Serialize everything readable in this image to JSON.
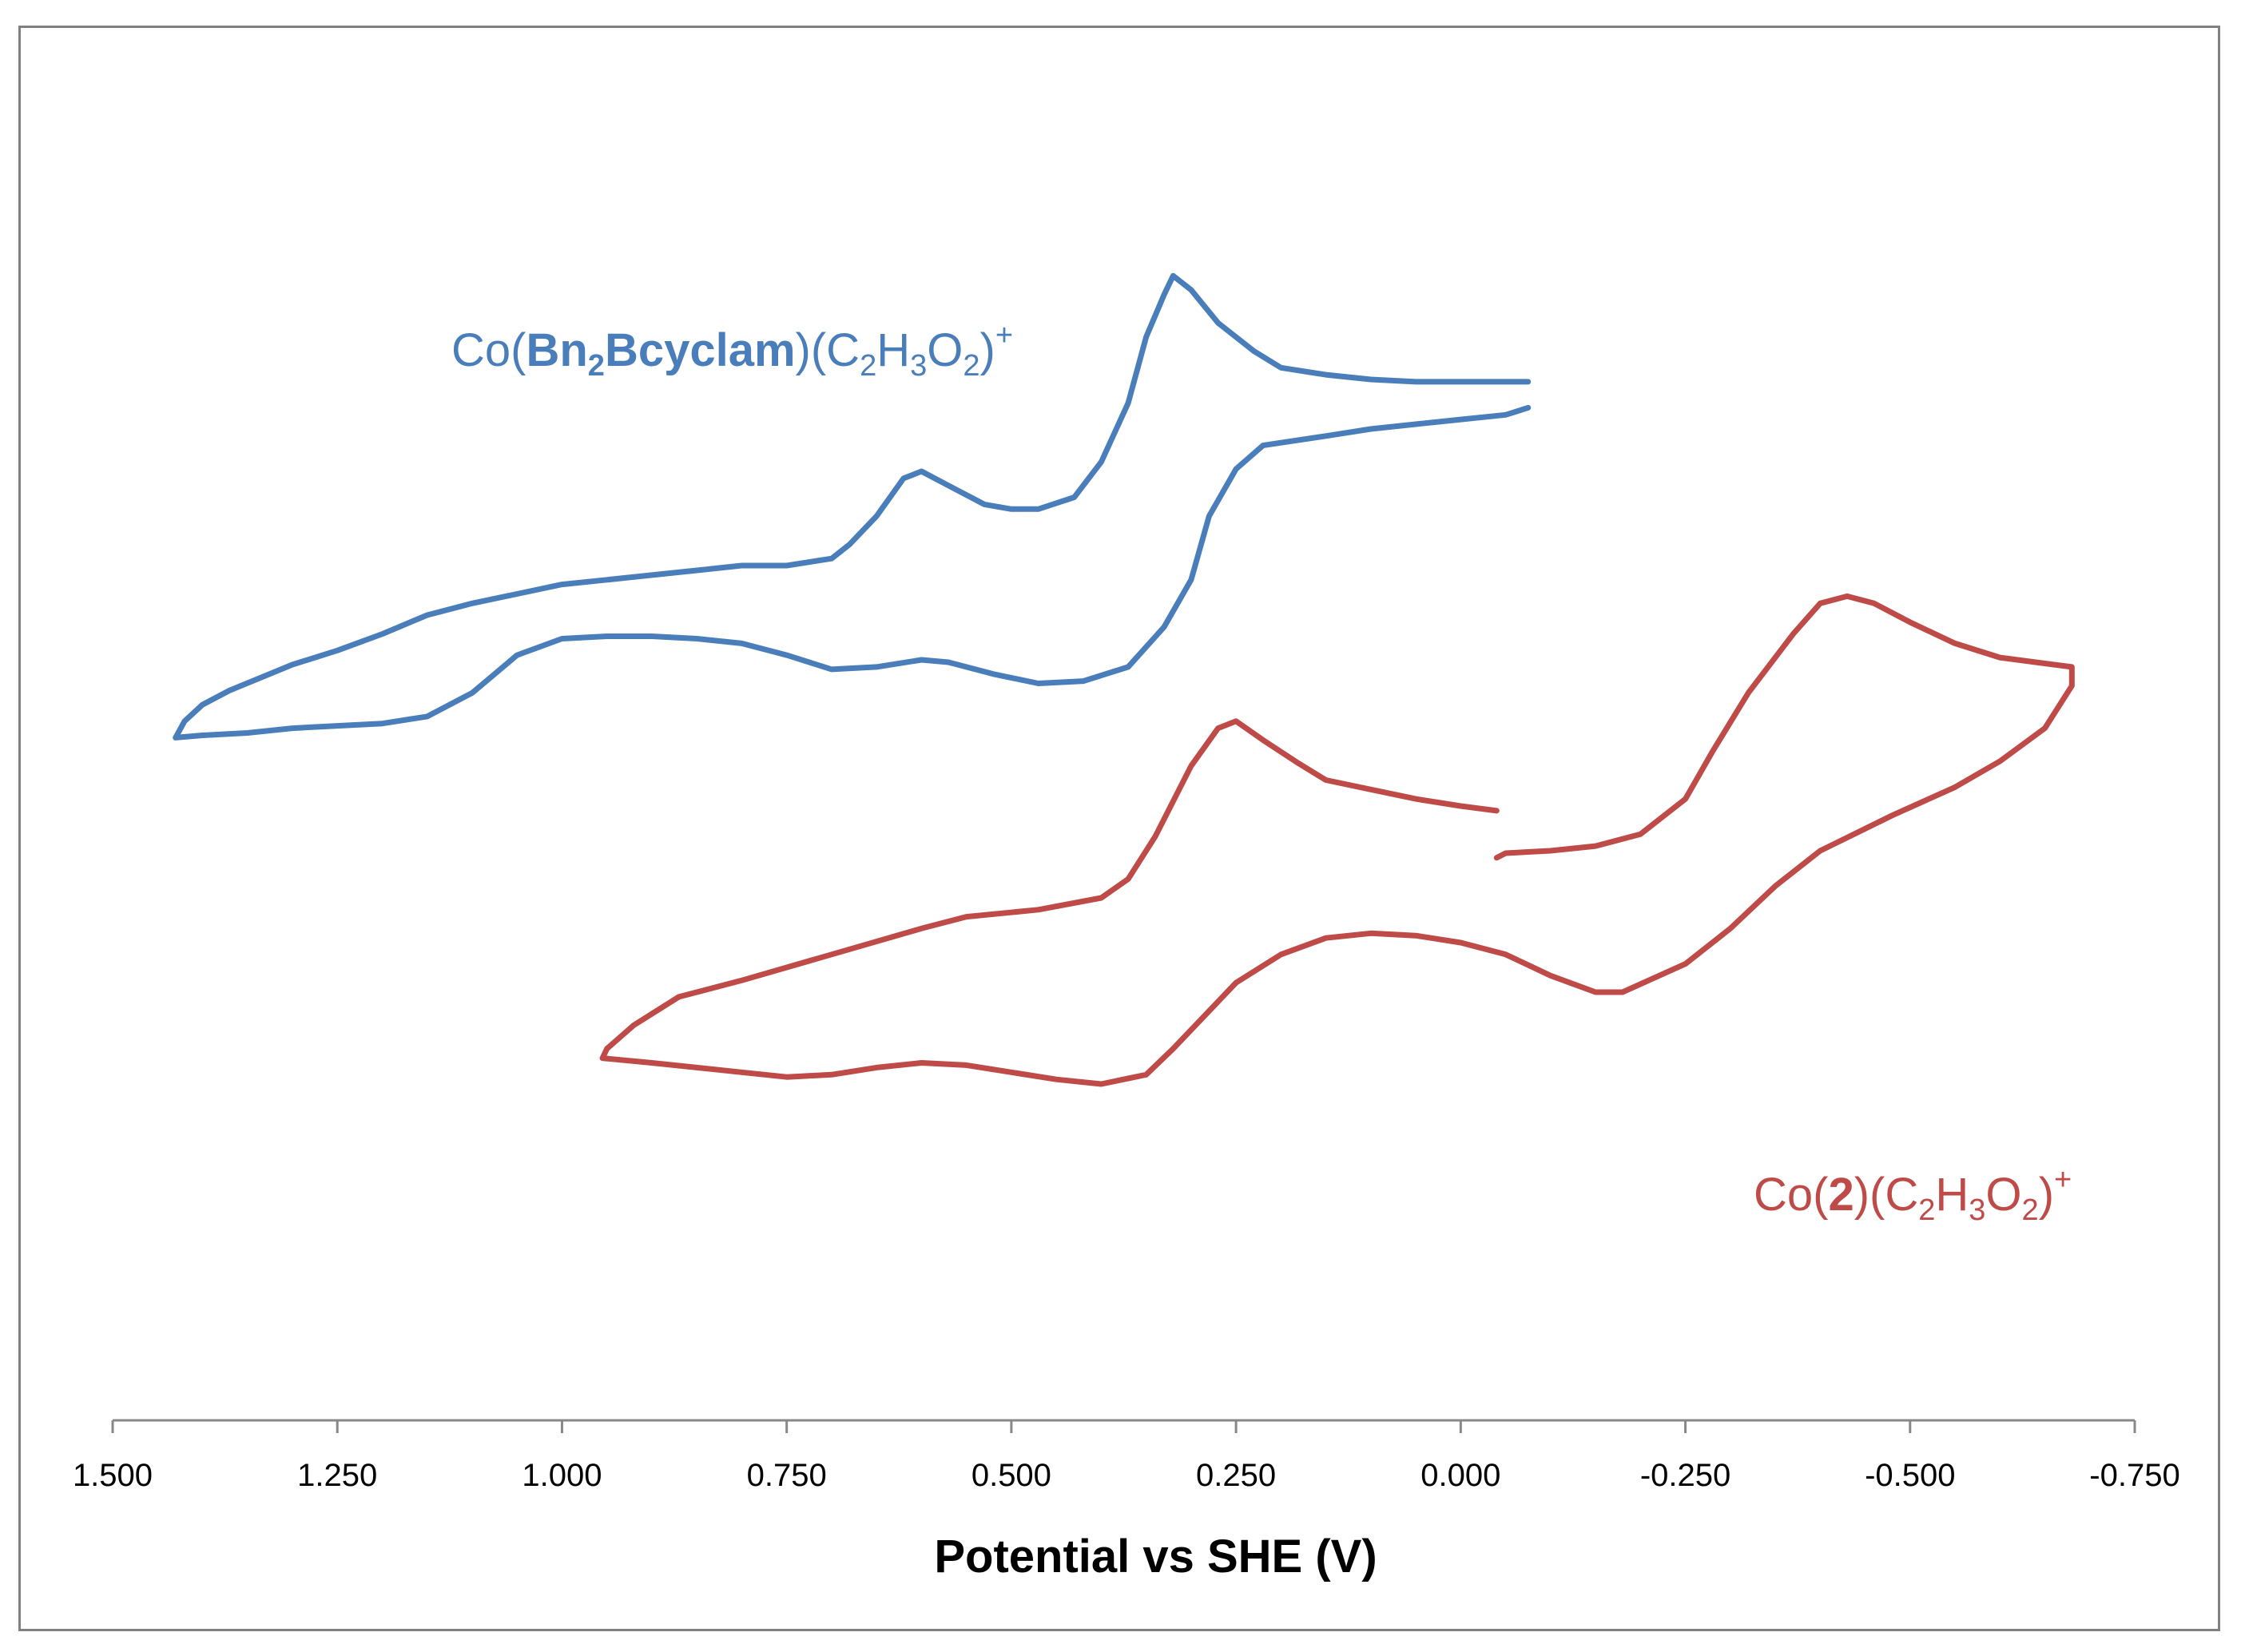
{
  "chart_data": {
    "type": "line",
    "title": "",
    "xlabel": "Potential vs SHE (V)",
    "ylabel": "",
    "xlim": [
      1.5,
      -0.75
    ],
    "x_reversed": true,
    "y_units": "arbitrary (offset current)",
    "x_ticks": [
      1.5,
      1.25,
      1.0,
      0.75,
      0.5,
      0.25,
      0.0,
      -0.25,
      -0.5,
      -0.75
    ],
    "x_tick_labels": [
      "1.500",
      "1.250",
      "1.000",
      "0.750",
      "0.500",
      "0.250",
      "0.000",
      "-0.250",
      "-0.500",
      "-0.750"
    ],
    "grid": false,
    "series": [
      {
        "name": "Co(Bn2Bcyclam)(C2H3O2)+",
        "label_parts": [
          {
            "text": "Co(",
            "bold": false,
            "sub": false,
            "sup": false
          },
          {
            "text": "Bn",
            "bold": true,
            "sub": false,
            "sup": false
          },
          {
            "text": "2",
            "bold": true,
            "sub": true,
            "sup": false
          },
          {
            "text": "Bcyclam",
            "bold": true,
            "sub": false,
            "sup": false
          },
          {
            "text": ")(C",
            "bold": false,
            "sub": false,
            "sup": false
          },
          {
            "text": "2",
            "bold": false,
            "sub": true,
            "sup": false
          },
          {
            "text": "H",
            "bold": false,
            "sub": false,
            "sup": false
          },
          {
            "text": "3",
            "bold": false,
            "sub": true,
            "sup": false
          },
          {
            "text": "O",
            "bold": false,
            "sub": false,
            "sup": false
          },
          {
            "text": "2",
            "bold": false,
            "sub": true,
            "sup": false
          },
          {
            "text": ")",
            "bold": false,
            "sub": false,
            "sup": false
          },
          {
            "text": "+",
            "bold": false,
            "sub": false,
            "sup": true
          }
        ],
        "color": "#4a7ebb",
        "points": [
          [
            -0.075,
            0.88
          ],
          [
            -0.05,
            0.85
          ],
          [
            0.0,
            0.83
          ],
          [
            0.05,
            0.81
          ],
          [
            0.1,
            0.79
          ],
          [
            0.15,
            0.76
          ],
          [
            0.22,
            0.72
          ],
          [
            0.25,
            0.62
          ],
          [
            0.28,
            0.42
          ],
          [
            0.3,
            0.15
          ],
          [
            0.33,
            -0.05
          ],
          [
            0.37,
            -0.22
          ],
          [
            0.42,
            -0.28
          ],
          [
            0.47,
            -0.29
          ],
          [
            0.52,
            -0.25
          ],
          [
            0.57,
            -0.2
          ],
          [
            0.6,
            -0.19
          ],
          [
            0.65,
            -0.22
          ],
          [
            0.7,
            -0.23
          ],
          [
            0.75,
            -0.17
          ],
          [
            0.8,
            -0.12
          ],
          [
            0.85,
            -0.1
          ],
          [
            0.9,
            -0.09
          ],
          [
            0.95,
            -0.09
          ],
          [
            1.0,
            -0.1
          ],
          [
            1.05,
            -0.17
          ],
          [
            1.1,
            -0.33
          ],
          [
            1.15,
            -0.43
          ],
          [
            1.2,
            -0.46
          ],
          [
            1.25,
            -0.47
          ],
          [
            1.3,
            -0.48
          ],
          [
            1.35,
            -0.5
          ],
          [
            1.4,
            -0.51
          ],
          [
            1.43,
            -0.52
          ],
          [
            1.42,
            -0.45
          ],
          [
            1.4,
            -0.38
          ],
          [
            1.37,
            -0.32
          ],
          [
            1.3,
            -0.21
          ],
          [
            1.25,
            -0.15
          ],
          [
            1.2,
            -0.08
          ],
          [
            1.15,
            0.0
          ],
          [
            1.1,
            0.05
          ],
          [
            1.05,
            0.09
          ],
          [
            1.0,
            0.13
          ],
          [
            0.95,
            0.15
          ],
          [
            0.9,
            0.17
          ],
          [
            0.85,
            0.19
          ],
          [
            0.8,
            0.21
          ],
          [
            0.75,
            0.21
          ],
          [
            0.7,
            0.24
          ],
          [
            0.68,
            0.3
          ],
          [
            0.65,
            0.42
          ],
          [
            0.62,
            0.58
          ],
          [
            0.6,
            0.61
          ],
          [
            0.57,
            0.55
          ],
          [
            0.53,
            0.47
          ],
          [
            0.5,
            0.45
          ],
          [
            0.47,
            0.45
          ],
          [
            0.43,
            0.5
          ],
          [
            0.4,
            0.65
          ],
          [
            0.37,
            0.9
          ],
          [
            0.35,
            1.18
          ],
          [
            0.33,
            1.36
          ],
          [
            0.32,
            1.44
          ],
          [
            0.3,
            1.38
          ],
          [
            0.27,
            1.24
          ],
          [
            0.23,
            1.12
          ],
          [
            0.2,
            1.05
          ],
          [
            0.15,
            1.02
          ],
          [
            0.1,
            1.0
          ],
          [
            0.05,
            0.99
          ],
          [
            0.0,
            0.99
          ],
          [
            -0.05,
            0.99
          ],
          [
            -0.075,
            0.99
          ]
        ]
      },
      {
        "name": "Co(2)(C2H3O2)+",
        "label_parts": [
          {
            "text": "Co(",
            "bold": false,
            "sub": false,
            "sup": false
          },
          {
            "text": "2",
            "bold": true,
            "sub": false,
            "sup": false
          },
          {
            "text": ")(C",
            "bold": false,
            "sub": false,
            "sup": false
          },
          {
            "text": "2",
            "bold": false,
            "sub": true,
            "sup": false
          },
          {
            "text": "H",
            "bold": false,
            "sub": false,
            "sup": false
          },
          {
            "text": "3",
            "bold": false,
            "sub": true,
            "sup": false
          },
          {
            "text": "O",
            "bold": false,
            "sub": false,
            "sup": false
          },
          {
            "text": "2",
            "bold": false,
            "sub": true,
            "sup": false
          },
          {
            "text": ")",
            "bold": false,
            "sub": false,
            "sup": false
          },
          {
            "text": "+",
            "bold": false,
            "sub": false,
            "sup": true
          }
        ],
        "color": "#be4b48",
        "points": [
          [
            -0.04,
            -1.03
          ],
          [
            -0.05,
            -1.01
          ],
          [
            -0.1,
            -1.0
          ],
          [
            -0.15,
            -0.98
          ],
          [
            -0.2,
            -0.93
          ],
          [
            -0.25,
            -0.78
          ],
          [
            -0.28,
            -0.58
          ],
          [
            -0.32,
            -0.33
          ],
          [
            -0.37,
            -0.08
          ],
          [
            -0.4,
            0.05
          ],
          [
            -0.43,
            0.08
          ],
          [
            -0.46,
            0.05
          ],
          [
            -0.5,
            -0.03
          ],
          [
            -0.55,
            -0.12
          ],
          [
            -0.6,
            -0.18
          ],
          [
            -0.66,
            -0.21
          ],
          [
            -0.68,
            -0.22
          ],
          [
            -0.68,
            -0.3
          ],
          [
            -0.65,
            -0.48
          ],
          [
            -0.6,
            -0.62
          ],
          [
            -0.55,
            -0.73
          ],
          [
            -0.48,
            -0.85
          ],
          [
            -0.4,
            -1.0
          ],
          [
            -0.35,
            -1.15
          ],
          [
            -0.3,
            -1.33
          ],
          [
            -0.25,
            -1.48
          ],
          [
            -0.18,
            -1.6
          ],
          [
            -0.15,
            -1.6
          ],
          [
            -0.1,
            -1.53
          ],
          [
            -0.05,
            -1.44
          ],
          [
            0.0,
            -1.39
          ],
          [
            0.05,
            -1.36
          ],
          [
            0.1,
            -1.35
          ],
          [
            0.15,
            -1.37
          ],
          [
            0.2,
            -1.44
          ],
          [
            0.25,
            -1.56
          ],
          [
            0.28,
            -1.68
          ],
          [
            0.32,
            -1.84
          ],
          [
            0.35,
            -1.95
          ],
          [
            0.4,
            -1.99
          ],
          [
            0.45,
            -1.97
          ],
          [
            0.5,
            -1.94
          ],
          [
            0.55,
            -1.91
          ],
          [
            0.6,
            -1.9
          ],
          [
            0.65,
            -1.92
          ],
          [
            0.7,
            -1.95
          ],
          [
            0.75,
            -1.96
          ],
          [
            0.8,
            -1.94
          ],
          [
            0.85,
            -1.92
          ],
          [
            0.9,
            -1.9
          ],
          [
            0.955,
            -1.88
          ],
          [
            0.95,
            -1.84
          ],
          [
            0.92,
            -1.74
          ],
          [
            0.87,
            -1.62
          ],
          [
            0.8,
            -1.55
          ],
          [
            0.7,
            -1.44
          ],
          [
            0.6,
            -1.33
          ],
          [
            0.55,
            -1.28
          ],
          [
            0.47,
            -1.25
          ],
          [
            0.4,
            -1.2
          ],
          [
            0.37,
            -1.12
          ],
          [
            0.34,
            -0.94
          ],
          [
            0.3,
            -0.64
          ],
          [
            0.27,
            -0.48
          ],
          [
            0.25,
            -0.45
          ],
          [
            0.22,
            -0.53
          ],
          [
            0.18,
            -0.63
          ],
          [
            0.15,
            -0.7
          ],
          [
            0.1,
            -0.74
          ],
          [
            0.05,
            -0.78
          ],
          [
            0.0,
            -0.81
          ],
          [
            -0.04,
            -0.83
          ]
        ]
      }
    ]
  }
}
